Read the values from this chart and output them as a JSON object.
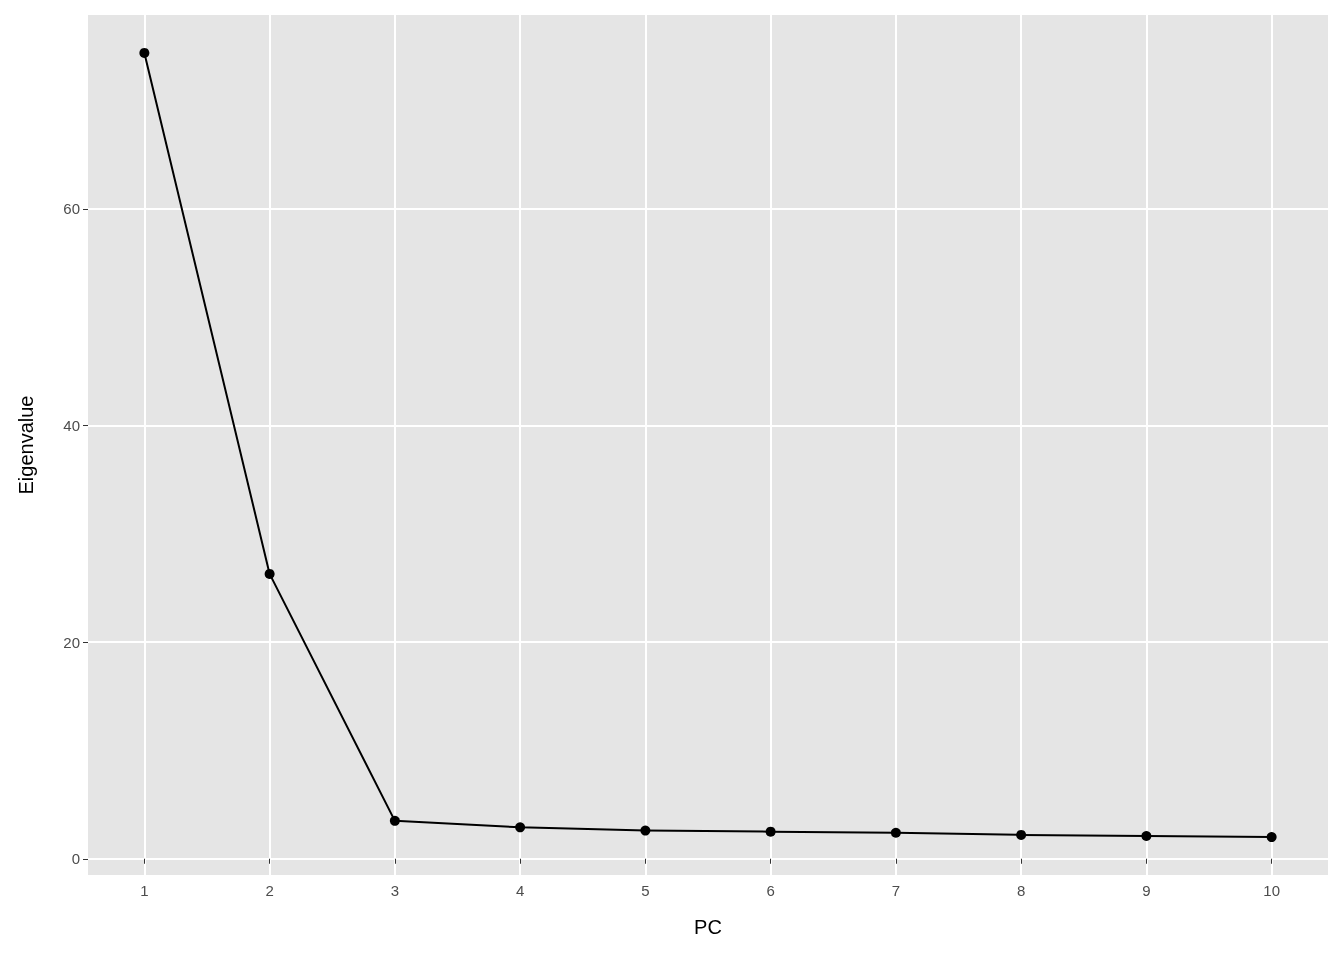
{
  "chart_data": {
    "type": "line",
    "xlabel": "PC",
    "ylabel": "Eigenvalue",
    "x": [
      1,
      2,
      3,
      4,
      5,
      6,
      7,
      8,
      9,
      10
    ],
    "series": [
      {
        "color": "#000000",
        "values": [
          74.4,
          26.3,
          3.5,
          2.9,
          2.6,
          2.5,
          2.4,
          2.2,
          2.1,
          2.0
        ]
      }
    ],
    "xlim": [
      0.55,
      10.45
    ],
    "ylim": [
      -1.5,
      77.9
    ],
    "xticks": [
      1,
      2,
      3,
      4,
      5,
      6,
      7,
      8,
      9,
      10
    ],
    "yticks": [
      0,
      20,
      40,
      60
    ],
    "grid": true,
    "marker": "circle",
    "line_style": "solid"
  }
}
